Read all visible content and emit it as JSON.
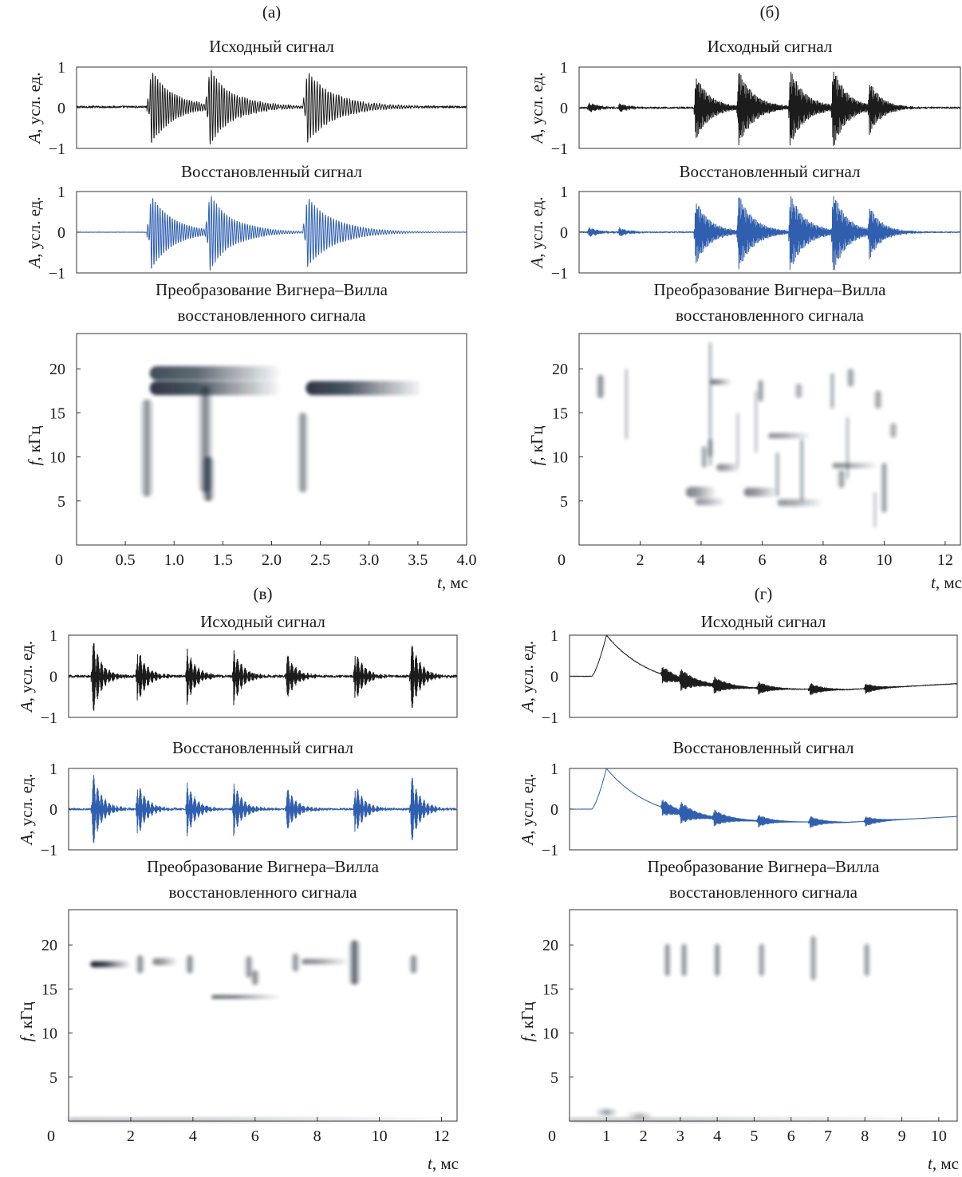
{
  "palette": {
    "original": "#1c1c1c",
    "reconstructed": "#2f5fae",
    "wvd": "#142030"
  },
  "labels": {
    "original_title": "Исходный сигнал",
    "reconstructed_title": "Восстановленный сигнал",
    "wvd_title_1": "Преобразование Вигнера–Вилла",
    "wvd_title_2": "восстановленного сигнала",
    "amp_axis_italic": "A",
    "amp_axis_rest": ", усл. ед.",
    "freq_axis_italic": "f",
    "freq_axis_rest": ", кГц",
    "time_axis_italic": "t",
    "time_axis_rest": ", мс"
  },
  "chart_data": [
    {
      "panel": "(а)",
      "type": "line",
      "xlim": [
        0,
        4.0
      ],
      "x_ticks": [
        "0",
        "0.5",
        "1.0",
        "1.5",
        "2.0",
        "2.5",
        "3.0",
        "3.5",
        "4.0"
      ],
      "x_tick_values": [
        0,
        0.5,
        1.0,
        1.5,
        2.0,
        2.5,
        3.0,
        3.5,
        4.0
      ],
      "amp_ylim": [
        -1,
        1
      ],
      "amp_ticks": [
        "1",
        "0",
        "−1"
      ],
      "freq_ylim": [
        0,
        24
      ],
      "freq_ticks": [
        "20",
        "15",
        "10",
        "5"
      ],
      "signal": {
        "baseline_original": 0.02,
        "noise_original": 0.05,
        "noise_reconstructed": 0.01,
        "bursts": [
          {
            "t": 0.75,
            "amp": 1.0,
            "freq": 40,
            "decay": 4.5
          },
          {
            "t": 1.35,
            "amp": 0.95,
            "freq": 38,
            "decay": 4.0
          },
          {
            "t": 2.35,
            "amp": 0.9,
            "freq": 36,
            "decay": 3.5
          }
        ]
      },
      "wvd_blobs": [
        {
          "t": 0.75,
          "t_end": 2.1,
          "f": 19.5,
          "df": 0.8,
          "dir": "right",
          "w": 0.8
        },
        {
          "t": 0.75,
          "t_end": 2.1,
          "f": 17.8,
          "df": 0.8,
          "dir": "right",
          "w": 0.9
        },
        {
          "t": 0.72,
          "f": 11,
          "dt": 0.07,
          "df": 5.5,
          "dir": "sym",
          "w": 0.55
        },
        {
          "t": 1.32,
          "f": 12,
          "dt": 0.08,
          "df": 6,
          "dir": "sym",
          "w": 0.6
        },
        {
          "t": 1.35,
          "f": 7.5,
          "dt": 0.07,
          "df": 2.5,
          "dir": "sym",
          "w": 0.75
        },
        {
          "t": 2.35,
          "t_end": 3.55,
          "f": 17.8,
          "df": 0.8,
          "dir": "right",
          "w": 0.9
        },
        {
          "t": 2.5,
          "f": 15.2,
          "dt": 0.2,
          "df": 1.2,
          "dir": "right",
          "w": 0.75
        },
        {
          "t": 2.32,
          "f": 10.5,
          "dt": 0.06,
          "df": 4.5,
          "dir": "sym",
          "w": 0.55
        }
      ]
    },
    {
      "panel": "(б)",
      "type": "line",
      "xlim": [
        0,
        12.5
      ],
      "x_ticks": [
        "0",
        "2",
        "4",
        "6",
        "8",
        "10",
        "12"
      ],
      "x_tick_values": [
        0,
        2,
        4,
        6,
        8,
        10,
        12
      ],
      "amp_ylim": [
        -1,
        1
      ],
      "amp_ticks": [
        "1",
        "0",
        "−1"
      ],
      "freq_ylim": [
        0,
        24
      ],
      "freq_ticks": [
        "20",
        "15",
        "10",
        "5"
      ],
      "signal": {
        "baseline_original": 0.0,
        "noise_original": 0.04,
        "noise_reconstructed": 0.03,
        "bursts": [
          {
            "t": 0.3,
            "amp": 0.12,
            "freq": 45,
            "decay": 3
          },
          {
            "t": 1.3,
            "amp": 0.1,
            "freq": 45,
            "decay": 3
          },
          {
            "t": 3.8,
            "amp": 0.85,
            "freq": 50,
            "decay": 2.2
          },
          {
            "t": 5.2,
            "amp": 0.95,
            "freq": 50,
            "decay": 2.0
          },
          {
            "t": 6.9,
            "amp": 0.95,
            "freq": 50,
            "decay": 2.0
          },
          {
            "t": 8.3,
            "amp": 1.0,
            "freq": 50,
            "decay": 2.2
          },
          {
            "t": 9.5,
            "amp": 0.6,
            "freq": 50,
            "decay": 2.5
          }
        ]
      },
      "wvd_blobs": [
        {
          "t": 0.7,
          "f": 18,
          "dt": 0.15,
          "df": 1.3,
          "dir": "sym",
          "w": 0.6
        },
        {
          "t": 1.55,
          "f": 16,
          "dt": 0.06,
          "df": 4,
          "dir": "sym",
          "w": 0.4
        },
        {
          "t": 4.3,
          "f": 16,
          "dt": 0.06,
          "df": 7,
          "dir": "sym",
          "w": 0.5
        },
        {
          "t": 4.3,
          "t_end": 5.0,
          "f": 18.5,
          "df": 0.3,
          "dir": "right",
          "w": 0.6
        },
        {
          "t": 3.5,
          "t_end": 4.5,
          "f": 6,
          "df": 0.6,
          "dir": "right",
          "w": 0.55
        },
        {
          "t": 3.8,
          "t_end": 4.8,
          "f": 4.9,
          "df": 0.4,
          "dir": "right",
          "w": 0.45
        },
        {
          "t": 4.1,
          "f": 10,
          "dt": 0.12,
          "df": 1.2,
          "dir": "sym",
          "w": 0.5
        },
        {
          "t": 4.3,
          "f": 11,
          "dt": 0.12,
          "df": 1.0,
          "dir": "sym",
          "w": 0.45
        },
        {
          "t": 4.5,
          "t_end": 5.3,
          "f": 8.8,
          "df": 0.4,
          "dir": "right",
          "w": 0.5
        },
        {
          "t": 5.2,
          "f": 12,
          "dt": 0.06,
          "df": 3,
          "dir": "sym",
          "w": 0.35
        },
        {
          "t": 5.95,
          "f": 17.5,
          "dt": 0.12,
          "df": 1.2,
          "dir": "sym",
          "w": 0.55
        },
        {
          "t": 5.8,
          "f": 14,
          "dt": 0.06,
          "df": 3.5,
          "dir": "sym",
          "w": 0.35
        },
        {
          "t": 5.8,
          "f": 8.5,
          "dt": 0.2,
          "df": 1.1,
          "dir": "right",
          "w": 0.8
        },
        {
          "t": 5.4,
          "t_end": 6.5,
          "f": 6,
          "df": 0.5,
          "dir": "right",
          "w": 0.55
        },
        {
          "t": 6.2,
          "t_end": 7.6,
          "f": 12.4,
          "df": 0.3,
          "dir": "right",
          "w": 0.5
        },
        {
          "t": 6.5,
          "f": 8,
          "dt": 0.08,
          "df": 2.5,
          "dir": "sym",
          "w": 0.45
        },
        {
          "t": 7.2,
          "f": 17.5,
          "dt": 0.15,
          "df": 0.8,
          "dir": "sym",
          "w": 0.45
        },
        {
          "t": 7.3,
          "f": 8.5,
          "dt": 0.07,
          "df": 3.5,
          "dir": "sym",
          "w": 0.55
        },
        {
          "t": 6.5,
          "t_end": 8.0,
          "f": 4.8,
          "df": 0.4,
          "dir": "right",
          "w": 0.45
        },
        {
          "t": 8.3,
          "t_end": 9.8,
          "f": 9.0,
          "df": 0.3,
          "dir": "right",
          "w": 0.5
        },
        {
          "t": 8.3,
          "f": 17.5,
          "dt": 0.08,
          "df": 2.0,
          "dir": "sym",
          "w": 0.5
        },
        {
          "t": 8.9,
          "f": 19,
          "dt": 0.15,
          "df": 1.0,
          "dir": "sym",
          "w": 0.5
        },
        {
          "t": 8.8,
          "f": 11,
          "dt": 0.06,
          "df": 3.5,
          "dir": "sym",
          "w": 0.45
        },
        {
          "t": 8.6,
          "f": 7.5,
          "dt": 0.15,
          "df": 1.0,
          "dir": "sym",
          "w": 0.5
        },
        {
          "t": 9.8,
          "f": 16.5,
          "dt": 0.15,
          "df": 1.0,
          "dir": "sym",
          "w": 0.5
        },
        {
          "t": 10.3,
          "f": 13,
          "dt": 0.15,
          "df": 0.8,
          "dir": "sym",
          "w": 0.45
        },
        {
          "t": 10.0,
          "f": 6.5,
          "dt": 0.12,
          "df": 2.8,
          "dir": "sym",
          "w": 0.55
        },
        {
          "t": 9.7,
          "f": 4,
          "dt": 0.06,
          "df": 2.0,
          "dir": "sym",
          "w": 0.35
        }
      ]
    },
    {
      "panel": "(в)",
      "type": "line",
      "xlim": [
        0,
        12.5
      ],
      "x_ticks": [
        "0",
        "2",
        "4",
        "6",
        "8",
        "10",
        "12"
      ],
      "x_tick_values": [
        0,
        2,
        4,
        6,
        8,
        10,
        12
      ],
      "amp_ylim": [
        -1,
        1
      ],
      "amp_ticks": [
        "1",
        "0",
        "−1"
      ],
      "freq_ylim": [
        0,
        24
      ],
      "freq_ticks": [
        "20",
        "15",
        "10",
        "5"
      ],
      "signal": {
        "baseline_original": 0.0,
        "noise_original": 0.06,
        "noise_reconstructed": 0.05,
        "bursts": [
          {
            "t": 0.75,
            "amp": 1.0,
            "freq": 60,
            "decay": 3.5
          },
          {
            "t": 2.2,
            "amp": 0.75,
            "freq": 60,
            "decay": 3.5
          },
          {
            "t": 3.8,
            "amp": 0.7,
            "freq": 60,
            "decay": 3.5
          },
          {
            "t": 5.3,
            "amp": 0.7,
            "freq": 60,
            "decay": 3.5
          },
          {
            "t": 7.0,
            "amp": 0.6,
            "freq": 60,
            "decay": 3.5
          },
          {
            "t": 9.2,
            "amp": 0.7,
            "freq": 60,
            "decay": 3.5
          },
          {
            "t": 11.0,
            "amp": 0.95,
            "freq": 60,
            "decay": 3.5
          }
        ]
      },
      "wvd_blobs": [
        {
          "t": 0.7,
          "t_end": 2.0,
          "f": 17.8,
          "df": 0.35,
          "dir": "right",
          "w": 1.0
        },
        {
          "t": 2.3,
          "f": 17.8,
          "dt": 0.15,
          "df": 1.0,
          "dir": "sym",
          "w": 0.6
        },
        {
          "t": 2.7,
          "t_end": 3.5,
          "f": 18.1,
          "df": 0.4,
          "dir": "right",
          "w": 0.55
        },
        {
          "t": 3.9,
          "f": 17.8,
          "dt": 0.15,
          "df": 1.0,
          "dir": "sym",
          "w": 0.6
        },
        {
          "t": 5.8,
          "f": 17.5,
          "dt": 0.15,
          "df": 1.2,
          "dir": "sym",
          "w": 0.55
        },
        {
          "t": 6.0,
          "f": 16.3,
          "dt": 0.15,
          "df": 0.8,
          "dir": "sym",
          "w": 0.6
        },
        {
          "t": 4.6,
          "t_end": 6.8,
          "f": 14.1,
          "df": 0.2,
          "dir": "right",
          "w": 0.75
        },
        {
          "t": 7.3,
          "f": 18,
          "dt": 0.15,
          "df": 1.0,
          "dir": "sym",
          "w": 0.55
        },
        {
          "t": 7.5,
          "t_end": 9.0,
          "f": 18.1,
          "df": 0.3,
          "dir": "right",
          "w": 0.55
        },
        {
          "t": 9.2,
          "f": 18,
          "dt": 0.2,
          "df": 2.5,
          "dir": "sym",
          "w": 0.75
        },
        {
          "t": 11.1,
          "f": 17.8,
          "dt": 0.15,
          "df": 1.0,
          "dir": "sym",
          "w": 0.6
        },
        {
          "t": 0.0,
          "t_end": 12.5,
          "f": 0.15,
          "df": 0.2,
          "dir": "right",
          "w": 0.35
        }
      ]
    },
    {
      "panel": "(г)",
      "type": "line",
      "xlim": [
        0,
        10.5
      ],
      "x_ticks": [
        "0",
        "1",
        "2",
        "3",
        "4",
        "5",
        "6",
        "7",
        "8",
        "9",
        "10"
      ],
      "x_tick_values": [
        0,
        1,
        2,
        3,
        4,
        5,
        6,
        7,
        8,
        9,
        10
      ],
      "amp_ylim": [
        -1,
        1
      ],
      "amp_ticks": [
        "1",
        "0",
        "−1"
      ],
      "freq_ylim": [
        0,
        24
      ],
      "freq_ticks": [
        "20",
        "15",
        "10",
        "5"
      ],
      "signal": {
        "baseline_original": 0.0,
        "noise_original": 0.015,
        "noise_reconstructed": 0.005,
        "trend": "pulse",
        "bursts": [
          {
            "t": 2.5,
            "amp": 0.22,
            "freq": 40,
            "decay": 2.5
          },
          {
            "t": 3.0,
            "amp": 0.22,
            "freq": 40,
            "decay": 2.5
          },
          {
            "t": 3.9,
            "amp": 0.18,
            "freq": 40,
            "decay": 2.5
          },
          {
            "t": 5.1,
            "amp": 0.15,
            "freq": 40,
            "decay": 3
          },
          {
            "t": 6.5,
            "amp": 0.15,
            "freq": 40,
            "decay": 3
          },
          {
            "t": 8.0,
            "amp": 0.13,
            "freq": 40,
            "decay": 3
          }
        ]
      },
      "wvd_blobs": [
        {
          "t": 2.65,
          "f": 18.3,
          "dt": 0.1,
          "df": 1.8,
          "dir": "sym",
          "w": 0.6
        },
        {
          "t": 3.1,
          "f": 18.3,
          "dt": 0.1,
          "df": 1.8,
          "dir": "sym",
          "w": 0.6
        },
        {
          "t": 4.0,
          "f": 18.3,
          "dt": 0.1,
          "df": 1.8,
          "dir": "sym",
          "w": 0.6
        },
        {
          "t": 5.2,
          "f": 18.3,
          "dt": 0.1,
          "df": 1.8,
          "dir": "sym",
          "w": 0.55
        },
        {
          "t": 6.6,
          "f": 18.5,
          "dt": 0.1,
          "df": 2.5,
          "dir": "sym",
          "w": 0.55
        },
        {
          "t": 8.05,
          "f": 18.3,
          "dt": 0.1,
          "df": 1.8,
          "dir": "sym",
          "w": 0.55
        },
        {
          "t": 1.0,
          "f": 1.0,
          "dt": 0.3,
          "df": 0.35,
          "dir": "sym",
          "w": 0.45
        },
        {
          "t": 1.9,
          "f": 0.6,
          "dt": 0.35,
          "df": 0.3,
          "dir": "sym",
          "w": 0.35
        },
        {
          "t": 0.0,
          "t_end": 10.5,
          "f": 0.15,
          "df": 0.2,
          "dir": "right",
          "w": 0.3
        }
      ]
    }
  ]
}
